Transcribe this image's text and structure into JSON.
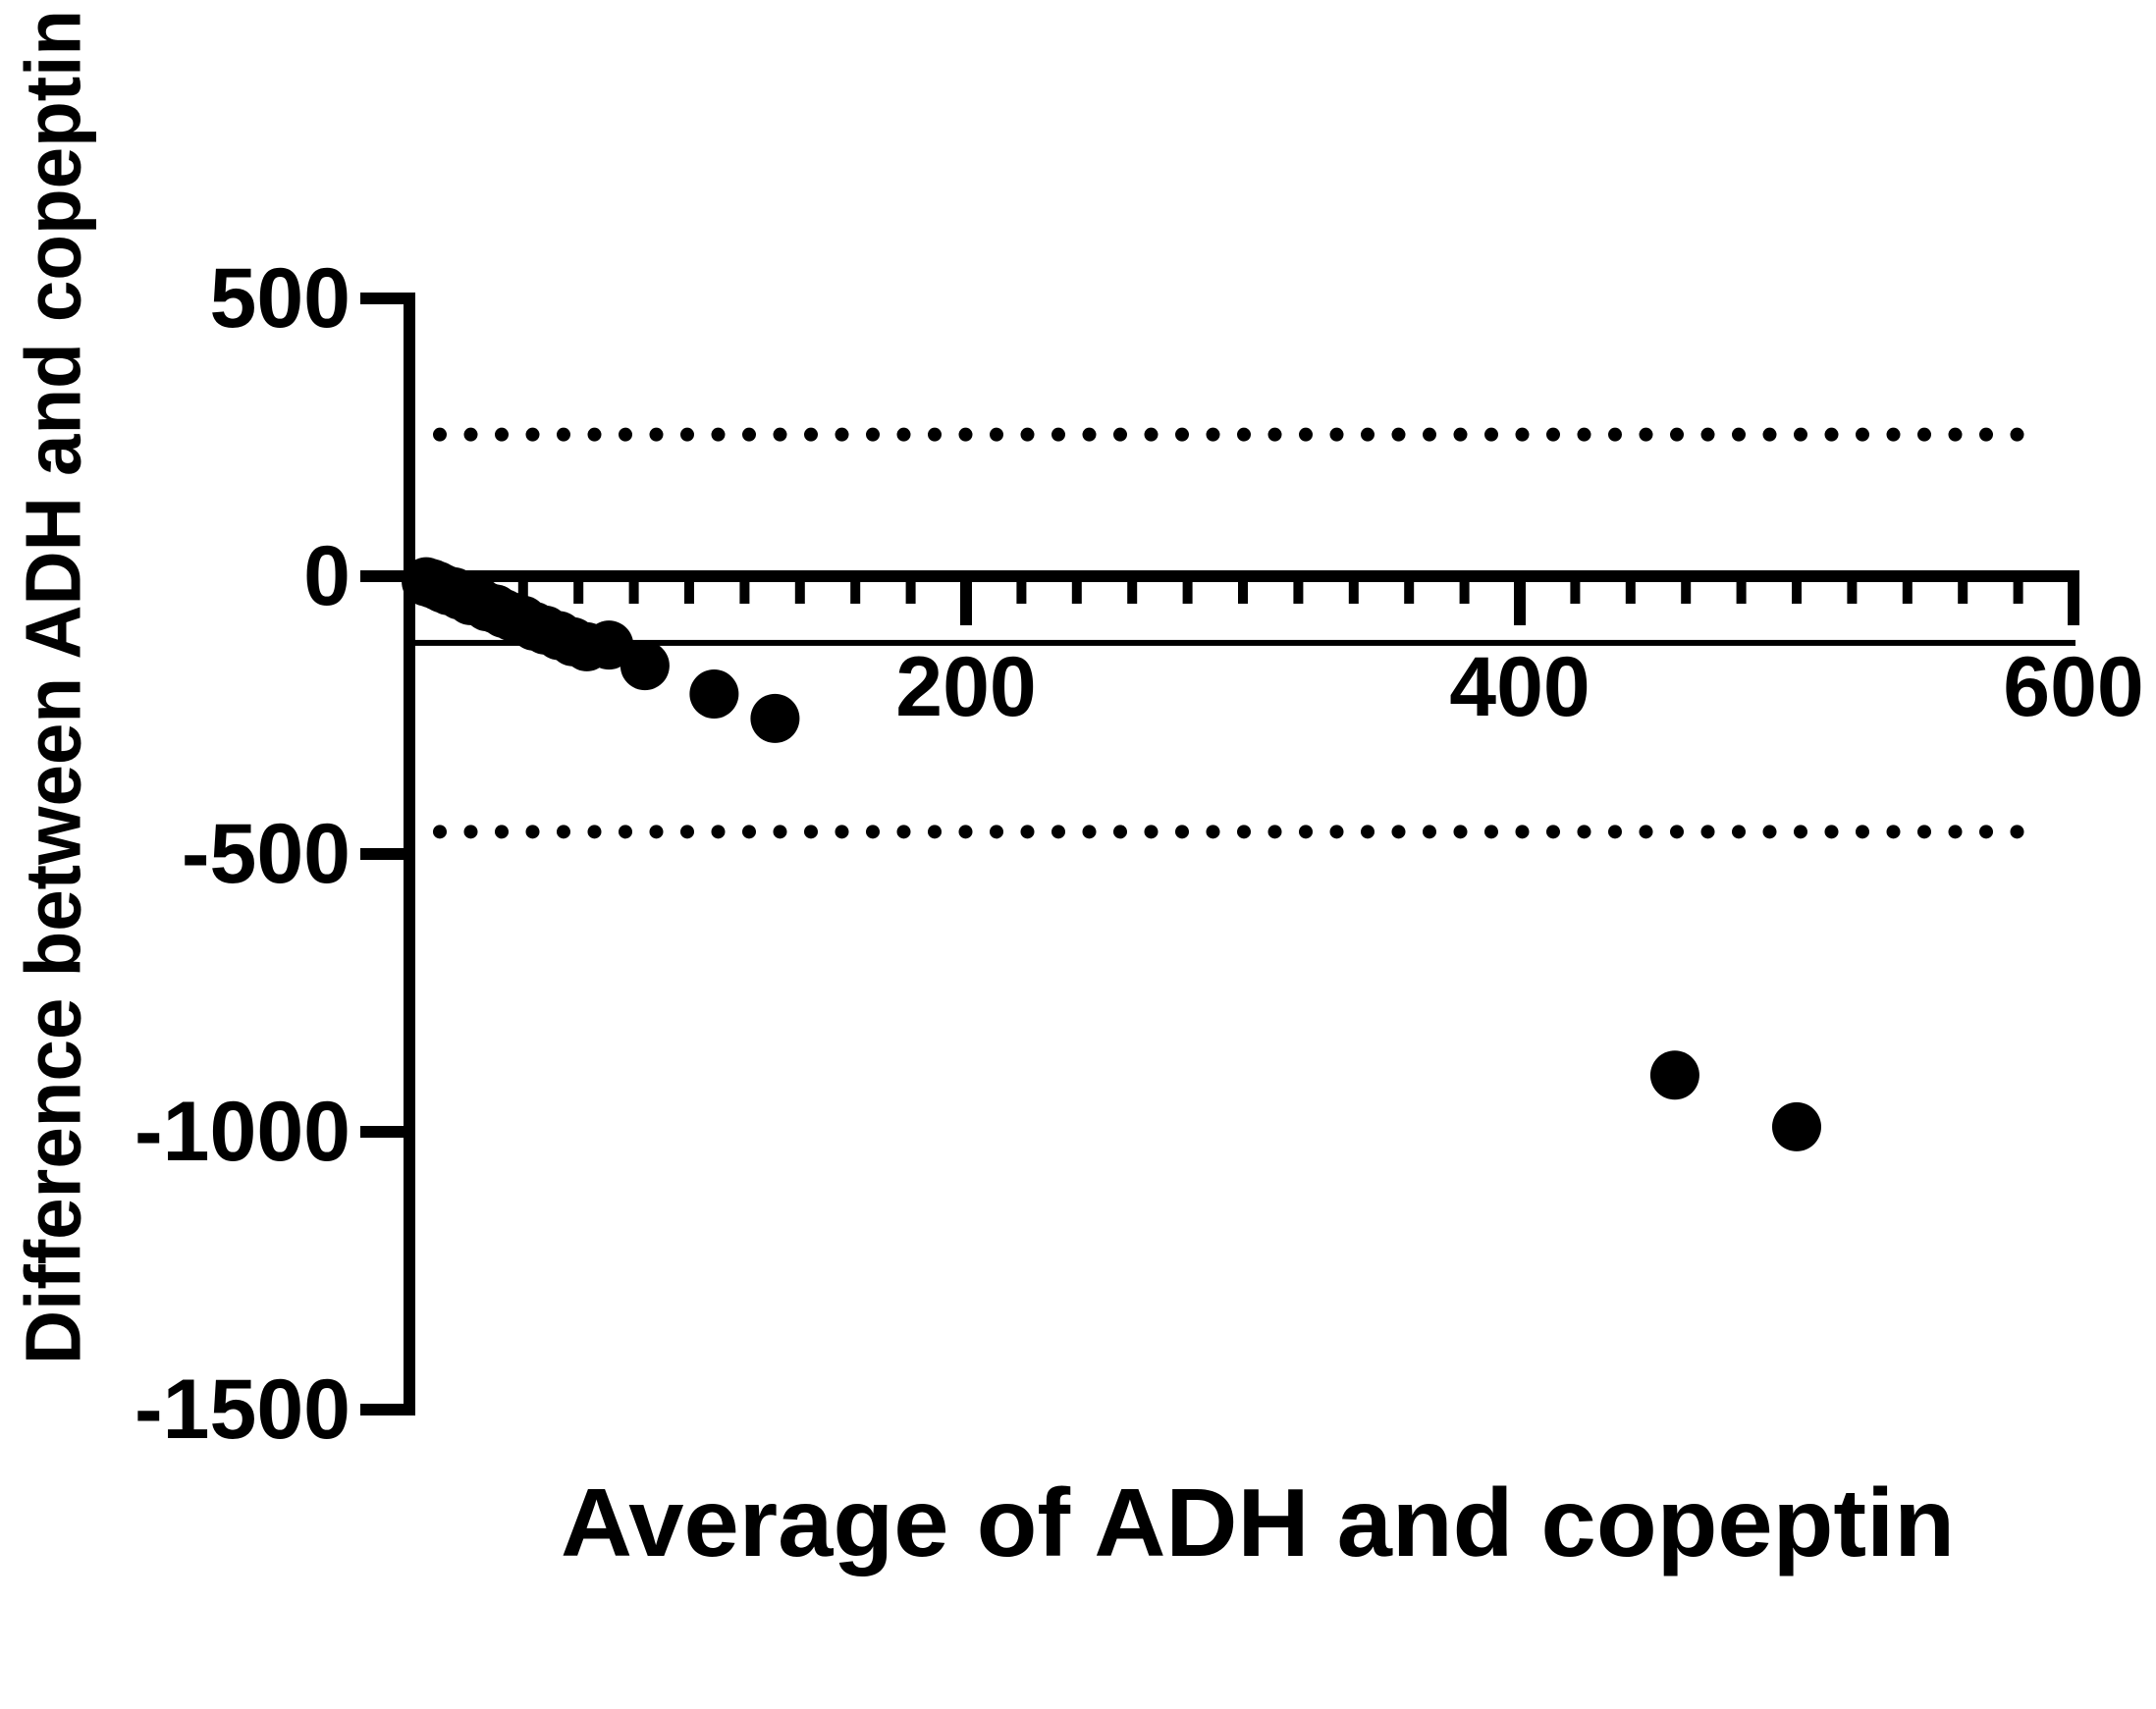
{
  "figure": {
    "background_color": "#ffffff",
    "foreground_color": "#000000"
  },
  "chart_data": {
    "type": "scatter",
    "subtype": "bland-altman",
    "title": "",
    "xlabel": "Average of ADH and copeptin",
    "ylabel": "Difference between ADH and copeptin",
    "xlim": [
      0,
      600
    ],
    "ylim": [
      -1500,
      500
    ],
    "x_ticks": [
      200,
      400,
      600
    ],
    "x_minor_tick_step": 20,
    "y_ticks": [
      500,
      0,
      -500,
      -1000,
      -1500
    ],
    "grid": false,
    "legend": null,
    "reference_lines": {
      "mean_bias": -120,
      "upper_loa": 255,
      "lower_loa": -460,
      "loa_style": "dotted",
      "bias_style": "thin-solid"
    },
    "marker": {
      "shape": "circle",
      "color": "#000000",
      "radius_px": 25
    },
    "points": [
      [
        5,
        -10
      ],
      [
        7,
        -13
      ],
      [
        9,
        -17
      ],
      [
        11,
        -22
      ],
      [
        13,
        -26
      ],
      [
        15,
        -28
      ],
      [
        17,
        -34
      ],
      [
        19,
        -37
      ],
      [
        21,
        -44
      ],
      [
        24,
        -46
      ],
      [
        27,
        -55
      ],
      [
        30,
        -59
      ],
      [
        33,
        -67
      ],
      [
        36,
        -73
      ],
      [
        40,
        -79
      ],
      [
        44,
        -90
      ],
      [
        48,
        -97
      ],
      [
        53,
        -107
      ],
      [
        58,
        -118
      ],
      [
        63,
        -127
      ],
      [
        71,
        -124
      ],
      [
        84,
        -161
      ],
      [
        109,
        -212
      ],
      [
        131,
        -256
      ],
      [
        456,
        -898
      ],
      [
        500,
        -991
      ]
    ]
  }
}
